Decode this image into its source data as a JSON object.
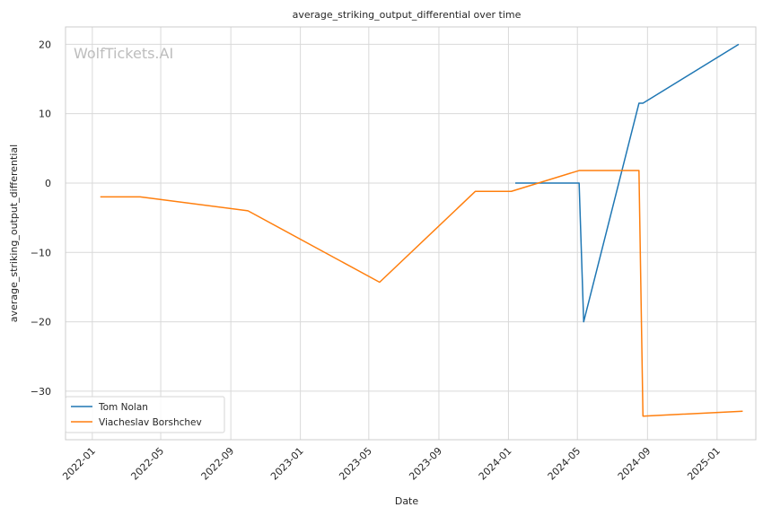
{
  "chart_data": {
    "type": "line",
    "title": "average_striking_output_differential over time",
    "xlabel": "Date",
    "ylabel": "average_striking_output_differential",
    "watermark": "WolfTickets.AI",
    "xlim": [
      "2021-11-15",
      "2025-03-10"
    ],
    "ylim": [
      -37,
      22.5
    ],
    "x_ticks": [
      "2022-01",
      "2022-05",
      "2022-09",
      "2023-01",
      "2023-05",
      "2023-09",
      "2024-01",
      "2024-05",
      "2024-09",
      "2025-01"
    ],
    "y_ticks": [
      20,
      10,
      0,
      -10,
      -20,
      -30
    ],
    "y_tick_labels": [
      "20",
      "10",
      "0",
      "−10",
      "−20",
      "−30"
    ],
    "grid": true,
    "legend_position": "lower-left",
    "series": [
      {
        "name": "Tom Nolan",
        "color": "#1f77b4",
        "points": [
          {
            "x": "2024-01-13",
            "y": 0
          },
          {
            "x": "2024-05-04",
            "y": 0
          },
          {
            "x": "2024-05-12",
            "y": -20
          },
          {
            "x": "2024-08-17",
            "y": 11.5
          },
          {
            "x": "2024-08-24",
            "y": 11.5
          },
          {
            "x": "2025-02-08",
            "y": 20
          }
        ]
      },
      {
        "name": "Viacheslav Borshchev",
        "color": "#ff7f0e",
        "points": [
          {
            "x": "2022-01-15",
            "y": -2
          },
          {
            "x": "2022-03-26",
            "y": -2
          },
          {
            "x": "2022-10-01",
            "y": -4
          },
          {
            "x": "2023-05-20",
            "y": -14.3
          },
          {
            "x": "2023-11-04",
            "y": -1.2
          },
          {
            "x": "2024-01-06",
            "y": -1.2
          },
          {
            "x": "2024-05-04",
            "y": 1.8
          },
          {
            "x": "2024-08-17",
            "y": 1.8
          },
          {
            "x": "2024-08-24",
            "y": -33.6
          },
          {
            "x": "2025-02-15",
            "y": -32.9
          }
        ]
      }
    ]
  }
}
